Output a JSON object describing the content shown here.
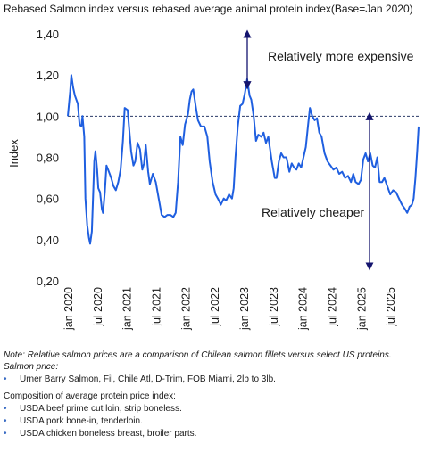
{
  "chart_data": {
    "type": "line",
    "title": "Rebased Salmon index versus rebased average animal protein index(Base=Jan 2020)",
    "ylabel": "Index",
    "ylim": [
      0.2,
      1.4
    ],
    "yticks": [
      "0,20",
      "0,40",
      "0,60",
      "0,80",
      "1,00",
      "1,20",
      "1,40"
    ],
    "xticks": [
      "jan 2020",
      "jul 2020",
      "jan 2021",
      "jul 2021",
      "jan 2022",
      "jul 2022",
      "jan 2023",
      "jul 2023",
      "jan 2024",
      "jul 2024",
      "jan 2025",
      "jul 2025"
    ],
    "x_range": [
      "2020-01",
      "2026-01"
    ],
    "reference_line": 1.0,
    "line_color": "#1f5fe0",
    "annotation_color": "#14146e",
    "annotations": [
      {
        "text": "Relatively more expensive",
        "arrow_from": 1.4,
        "arrow_to": 1.15
      },
      {
        "text": "Relatively cheaper",
        "arrow_from": 1.0,
        "arrow_to": 0.27
      }
    ],
    "series": [
      {
        "values": [
          [
            2020.0,
            1.0
          ],
          [
            2020.04,
            1.12
          ],
          [
            2020.06,
            1.2
          ],
          [
            2020.09,
            1.14
          ],
          [
            2020.12,
            1.1
          ],
          [
            2020.17,
            1.06
          ],
          [
            2020.2,
            0.96
          ],
          [
            2020.23,
            0.95
          ],
          [
            2020.25,
            1.0
          ],
          [
            2020.28,
            0.9
          ],
          [
            2020.3,
            0.6
          ],
          [
            2020.33,
            0.47
          ],
          [
            2020.36,
            0.41
          ],
          [
            2020.38,
            0.38
          ],
          [
            2020.41,
            0.44
          ],
          [
            2020.43,
            0.6
          ],
          [
            2020.45,
            0.78
          ],
          [
            2020.47,
            0.83
          ],
          [
            2020.5,
            0.74
          ],
          [
            2020.52,
            0.65
          ],
          [
            2020.55,
            0.63
          ],
          [
            2020.58,
            0.55
          ],
          [
            2020.6,
            0.53
          ],
          [
            2020.63,
            0.63
          ],
          [
            2020.66,
            0.76
          ],
          [
            2020.7,
            0.73
          ],
          [
            2020.74,
            0.7
          ],
          [
            2020.78,
            0.66
          ],
          [
            2020.82,
            0.64
          ],
          [
            2020.86,
            0.68
          ],
          [
            2020.9,
            0.74
          ],
          [
            2020.94,
            0.88
          ],
          [
            2020.97,
            1.04
          ],
          [
            2021.02,
            1.03
          ],
          [
            2021.05,
            0.93
          ],
          [
            2021.08,
            0.83
          ],
          [
            2021.12,
            0.76
          ],
          [
            2021.15,
            0.78
          ],
          [
            2021.19,
            0.87
          ],
          [
            2021.23,
            0.84
          ],
          [
            2021.27,
            0.74
          ],
          [
            2021.3,
            0.77
          ],
          [
            2021.33,
            0.86
          ],
          [
            2021.37,
            0.73
          ],
          [
            2021.4,
            0.67
          ],
          [
            2021.45,
            0.72
          ],
          [
            2021.5,
            0.68
          ],
          [
            2021.55,
            0.6
          ],
          [
            2021.6,
            0.52
          ],
          [
            2021.65,
            0.51
          ],
          [
            2021.7,
            0.52
          ],
          [
            2021.75,
            0.52
          ],
          [
            2021.8,
            0.51
          ],
          [
            2021.84,
            0.53
          ],
          [
            2021.88,
            0.68
          ],
          [
            2021.92,
            0.9
          ],
          [
            2021.96,
            0.86
          ],
          [
            2022.0,
            0.96
          ],
          [
            2022.05,
            1.01
          ],
          [
            2022.08,
            1.08
          ],
          [
            2022.11,
            1.12
          ],
          [
            2022.14,
            1.13
          ],
          [
            2022.18,
            1.05
          ],
          [
            2022.22,
            0.98
          ],
          [
            2022.27,
            0.95
          ],
          [
            2022.33,
            0.95
          ],
          [
            2022.38,
            0.9
          ],
          [
            2022.42,
            0.78
          ],
          [
            2022.47,
            0.68
          ],
          [
            2022.52,
            0.62
          ],
          [
            2022.56,
            0.6
          ],
          [
            2022.61,
            0.57
          ],
          [
            2022.66,
            0.6
          ],
          [
            2022.7,
            0.59
          ],
          [
            2022.75,
            0.62
          ],
          [
            2022.8,
            0.6
          ],
          [
            2022.83,
            0.65
          ],
          [
            2022.86,
            0.8
          ],
          [
            2022.9,
            0.95
          ],
          [
            2022.94,
            1.05
          ],
          [
            2022.98,
            1.06
          ],
          [
            2023.02,
            1.11
          ],
          [
            2023.06,
            1.18
          ],
          [
            2023.1,
            1.1
          ],
          [
            2023.13,
            1.08
          ],
          [
            2023.17,
            1.0
          ],
          [
            2023.21,
            0.88
          ],
          [
            2023.25,
            0.91
          ],
          [
            2023.3,
            0.9
          ],
          [
            2023.34,
            0.92
          ],
          [
            2023.38,
            0.87
          ],
          [
            2023.42,
            0.9
          ],
          [
            2023.48,
            0.78
          ],
          [
            2023.53,
            0.7
          ],
          [
            2023.56,
            0.7
          ],
          [
            2023.6,
            0.78
          ],
          [
            2023.64,
            0.82
          ],
          [
            2023.68,
            0.8
          ],
          [
            2023.73,
            0.8
          ],
          [
            2023.78,
            0.73
          ],
          [
            2023.82,
            0.77
          ],
          [
            2023.86,
            0.75
          ],
          [
            2023.9,
            0.74
          ],
          [
            2023.94,
            0.77
          ],
          [
            2023.98,
            0.75
          ],
          [
            2024.02,
            0.8
          ],
          [
            2024.06,
            0.85
          ],
          [
            2024.1,
            0.96
          ],
          [
            2024.13,
            1.04
          ],
          [
            2024.17,
            1.0
          ],
          [
            2024.21,
            0.98
          ],
          [
            2024.25,
            0.99
          ],
          [
            2024.29,
            0.92
          ],
          [
            2024.33,
            0.9
          ],
          [
            2024.38,
            0.82
          ],
          [
            2024.43,
            0.78
          ],
          [
            2024.48,
            0.76
          ],
          [
            2024.53,
            0.74
          ],
          [
            2024.58,
            0.75
          ],
          [
            2024.63,
            0.72
          ],
          [
            2024.68,
            0.73
          ],
          [
            2024.73,
            0.7
          ],
          [
            2024.78,
            0.71
          ],
          [
            2024.83,
            0.68
          ],
          [
            2024.87,
            0.72
          ],
          [
            2024.91,
            0.68
          ],
          [
            2024.96,
            0.67
          ],
          [
            2025.0,
            0.69
          ],
          [
            2025.04,
            0.79
          ],
          [
            2025.08,
            0.82
          ],
          [
            2025.12,
            0.78
          ],
          [
            2025.16,
            0.82
          ],
          [
            2025.2,
            0.76
          ],
          [
            2025.24,
            0.75
          ],
          [
            2025.28,
            0.8
          ],
          [
            2025.32,
            0.68
          ],
          [
            2025.36,
            0.68
          ],
          [
            2025.4,
            0.7
          ],
          [
            2025.45,
            0.66
          ],
          [
            2025.5,
            0.62
          ],
          [
            2025.55,
            0.64
          ],
          [
            2025.6,
            0.63
          ],
          [
            2025.65,
            0.6
          ],
          [
            2025.7,
            0.57
          ],
          [
            2025.75,
            0.55
          ],
          [
            2025.79,
            0.53
          ],
          [
            2025.83,
            0.56
          ],
          [
            2025.87,
            0.57
          ],
          [
            2025.9,
            0.6
          ],
          [
            2025.93,
            0.7
          ],
          [
            2025.96,
            0.83
          ],
          [
            2025.985,
            0.95
          ]
        ]
      }
    ]
  },
  "footer": {
    "note": "Note: Relative salmon prices are a comparison of Chilean salmon fillets versus select US proteins.",
    "salmon_heading": "Salmon price:",
    "salmon_items": [
      "Urner Barry Salmon, Fil, Chile Atl, D-Trim, FOB Miami, 2lb to 3lb."
    ],
    "protein_heading": "Composition of average protein price index:",
    "protein_items": [
      "USDA beef prime cut loin, strip boneless.",
      "USDA pork bone-in, tenderloin.",
      "USDA chicken boneless breast, broiler parts."
    ],
    "bullet": "•"
  }
}
